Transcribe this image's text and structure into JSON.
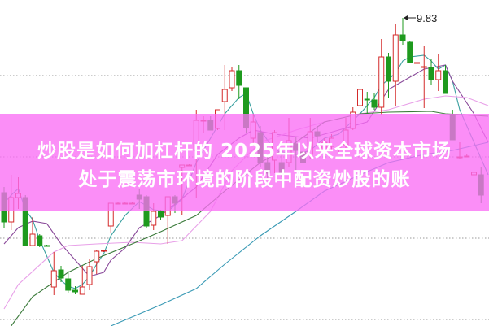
{
  "title": {
    "line1": "炒股是如何加杠杆的 2025年以来全球资本市场",
    "line2": "处于震荡市环境的阶段中配资炒股的账"
  },
  "chart_data": {
    "type": "candlestick",
    "ylim": [
      6.04,
      10.05
    ],
    "grid": true,
    "grid_levels": [
      9.12,
      8.12,
      7.12,
      6.12
    ],
    "colors": {
      "up": "#d42a2a",
      "down": "#1e9a1e",
      "grid": "#9a9a9a",
      "banner": "#fa6ef5"
    },
    "annotation": {
      "text": "9.83",
      "price": 9.83,
      "index": 56
    },
    "candles": [
      [
        7.68,
        7.32,
        7.75,
        7.25
      ],
      [
        7.32,
        7.62,
        7.9,
        7.22
      ],
      [
        7.62,
        7.67,
        7.87,
        7.48
      ],
      [
        7.62,
        7.03,
        7.65,
        7.03
      ],
      [
        7.03,
        7.17,
        7.38,
        7.03
      ],
      [
        7.15,
        7.03,
        7.17,
        7.01
      ],
      [
        7.03,
        7.02,
        7.04,
        7.02
      ],
      [
        6.52,
        6.72,
        6.95,
        6.42
      ],
      [
        6.73,
        6.63,
        6.78,
        6.58
      ],
      [
        6.62,
        6.48,
        6.72,
        6.44
      ],
      [
        6.48,
        6.46,
        6.53,
        6.43
      ],
      [
        6.43,
        6.52,
        6.78,
        6.43
      ],
      [
        6.55,
        6.77,
        6.87,
        6.48
      ],
      [
        6.83,
        6.96,
        6.97,
        6.68
      ],
      [
        6.97,
        6.97,
        6.98,
        6.95
      ],
      [
        7.27,
        7.55,
        7.55,
        7.18
      ],
      [
        7.55,
        7.55,
        7.56,
        7.55
      ],
      [
        7.55,
        7.55,
        7.56,
        7.55
      ],
      [
        7.55,
        7.55,
        7.56,
        7.55
      ],
      [
        7.65,
        7.6,
        7.72,
        7.48
      ],
      [
        7.63,
        7.27,
        7.65,
        7.25
      ],
      [
        7.28,
        7.45,
        7.55,
        7.22
      ],
      [
        7.45,
        7.38,
        7.47,
        7.35
      ],
      [
        7.4,
        7.63,
        7.63,
        7.05
      ],
      [
        7.63,
        7.55,
        7.65,
        7.43
      ],
      [
        7.99,
        8.02,
        8.02,
        7.4
      ],
      [
        8.02,
        8.02,
        8.03,
        8.01
      ],
      [
        8.2,
        8.57,
        8.7,
        7.62
      ],
      [
        8.57,
        8.57,
        8.62,
        8.42
      ],
      [
        8.57,
        8.45,
        8.62,
        8.45
      ],
      [
        8.47,
        8.7,
        8.7,
        8.45
      ],
      [
        8.8,
        8.95,
        9.25,
        8.45
      ],
      [
        8.97,
        9.18,
        9.23,
        8.93
      ],
      [
        9.18,
        9.0,
        9.25,
        8.83
      ],
      [
        8.97,
        8.48,
        8.97,
        8.42
      ],
      [
        8.35,
        8.55,
        8.65,
        8.25
      ],
      [
        8.42,
        8.05,
        8.5,
        8.0
      ],
      [
        8.05,
        7.92,
        8.15,
        7.85
      ],
      [
        8.08,
        8.42,
        8.45,
        7.92
      ],
      [
        8.05,
        7.92,
        8.15,
        7.87
      ],
      [
        8.05,
        8.32,
        8.6,
        8.0
      ],
      [
        8.28,
        8.2,
        8.37,
        7.95
      ],
      [
        8.18,
        8.05,
        8.25,
        8.0
      ],
      [
        8.15,
        8.43,
        8.6,
        8.1
      ],
      [
        8.43,
        8.38,
        8.5,
        8.3
      ],
      [
        8.2,
        8.3,
        8.35,
        8.15
      ],
      [
        8.25,
        8.35,
        8.4,
        8.2
      ],
      [
        8.22,
        8.23,
        8.25,
        8.15
      ],
      [
        8.27,
        8.45,
        8.6,
        8.2
      ],
      [
        8.47,
        8.67,
        8.73,
        8.45
      ],
      [
        8.75,
        8.95,
        8.97,
        8.62
      ],
      [
        8.83,
        8.82,
        8.92,
        8.65
      ],
      [
        8.82,
        8.73,
        8.9,
        8.7
      ],
      [
        8.73,
        9.35,
        9.57,
        8.63
      ],
      [
        9.35,
        9.05,
        9.4,
        8.85
      ],
      [
        9.05,
        9.62,
        9.75,
        8.75
      ],
      [
        9.62,
        9.55,
        9.83,
        9.5
      ],
      [
        9.53,
        9.28,
        9.55,
        9.27
      ],
      [
        9.27,
        9.28,
        9.55,
        9.15
      ],
      [
        9.22,
        9.23,
        9.48,
        8.72
      ],
      [
        9.22,
        9.07,
        9.33,
        9.0
      ],
      [
        9.07,
        9.18,
        9.38,
        8.93
      ],
      [
        9.18,
        8.9,
        9.25,
        8.9
      ],
      [
        8.63,
        8.33,
        8.7,
        8.33
      ],
      [
        8.12,
        8.12,
        8.3,
        8.1
      ],
      [
        8.13,
        8.13,
        8.15,
        8.12
      ],
      [
        7.9,
        7.93,
        8.12,
        7.42
      ],
      [
        7.9,
        7.65,
        8.0,
        7.55
      ]
    ],
    "moving_averages": [
      {
        "color": "#3aa0a0",
        "points": [
          [
            0,
            7.55
          ],
          [
            1,
            7.65
          ],
          [
            2,
            7.73
          ],
          [
            3,
            7.47
          ],
          [
            4,
            7.35
          ],
          [
            5,
            7.1
          ],
          [
            6,
            6.9
          ],
          [
            7,
            6.7
          ],
          [
            8,
            6.6
          ],
          [
            9,
            6.53
          ],
          [
            10,
            6.5
          ],
          [
            11,
            6.55
          ],
          [
            12,
            6.65
          ],
          [
            13,
            6.8
          ],
          [
            14,
            6.93
          ],
          [
            15,
            7.15
          ],
          [
            17,
            7.4
          ],
          [
            19,
            7.57
          ],
          [
            21,
            7.47
          ],
          [
            23,
            7.45
          ],
          [
            25,
            7.6
          ],
          [
            27,
            8.05
          ],
          [
            29,
            8.35
          ],
          [
            31,
            8.65
          ],
          [
            33,
            8.85
          ],
          [
            34,
            8.9
          ],
          [
            35,
            8.65
          ],
          [
            36,
            8.45
          ],
          [
            38,
            8.2
          ],
          [
            41,
            8.15
          ],
          [
            43,
            8.2
          ],
          [
            45,
            8.35
          ],
          [
            47,
            8.4
          ],
          [
            50,
            8.65
          ],
          [
            52,
            8.85
          ],
          [
            53,
            9.0
          ],
          [
            55,
            9.15
          ],
          [
            56,
            9.3
          ],
          [
            57,
            9.35
          ],
          [
            59,
            9.37
          ],
          [
            60,
            9.3
          ],
          [
            61,
            9.2
          ],
          [
            62,
            9.25
          ],
          [
            63,
            9.05
          ],
          [
            64,
            8.7
          ],
          [
            66,
            8.3
          ],
          [
            68,
            7.9
          ]
        ]
      },
      {
        "color": "#8a4a9a",
        "points": [
          [
            0,
            7.05
          ],
          [
            2,
            7.25
          ],
          [
            4,
            7.33
          ],
          [
            6,
            7.3
          ],
          [
            8,
            7.05
          ],
          [
            11,
            6.75
          ],
          [
            12,
            6.65
          ],
          [
            14,
            6.7
          ],
          [
            15,
            6.85
          ],
          [
            17,
            7.0
          ],
          [
            19,
            7.25
          ],
          [
            22,
            7.4
          ],
          [
            27,
            7.75
          ],
          [
            30,
            8.15
          ],
          [
            33,
            8.35
          ],
          [
            35,
            8.45
          ],
          [
            38,
            8.4
          ],
          [
            43,
            8.35
          ],
          [
            47,
            8.45
          ],
          [
            51,
            8.55
          ],
          [
            54,
            8.95
          ],
          [
            57,
            9.1
          ],
          [
            59,
            9.2
          ],
          [
            62,
            9.25
          ],
          [
            63,
            9.05
          ],
          [
            66,
            8.65
          ],
          [
            68,
            8.3
          ]
        ]
      },
      {
        "color": "#e8a0e8",
        "points": [
          [
            0,
            6.25
          ],
          [
            2,
            6.55
          ],
          [
            7,
            6.95
          ],
          [
            9,
            7.03
          ],
          [
            13,
            7.05
          ],
          [
            18,
            7.07
          ],
          [
            22,
            7.05
          ],
          [
            25,
            7.09
          ],
          [
            29,
            7.45
          ],
          [
            32,
            7.95
          ],
          [
            36,
            8.3
          ],
          [
            41,
            8.45
          ],
          [
            45,
            8.55
          ],
          [
            50,
            8.65
          ],
          [
            54,
            8.7
          ],
          [
            59,
            8.83
          ],
          [
            62,
            8.87
          ],
          [
            65,
            8.85
          ],
          [
            68,
            8.75
          ]
        ]
      },
      {
        "color": "#3a7a3a",
        "points": [
          [
            1,
            6.04
          ],
          [
            4,
            6.4
          ],
          [
            9,
            6.7
          ],
          [
            13,
            6.87
          ],
          [
            18,
            7.05
          ],
          [
            22,
            7.2
          ],
          [
            27,
            7.4
          ],
          [
            31,
            7.7
          ],
          [
            36,
            8.05
          ],
          [
            41,
            8.3
          ],
          [
            45,
            8.55
          ],
          [
            50,
            8.65
          ],
          [
            54,
            8.67
          ],
          [
            60,
            8.68
          ],
          [
            62,
            8.65
          ],
          [
            66,
            8.63
          ],
          [
            68,
            8.62
          ]
        ]
      },
      {
        "color": "#3a9ab5",
        "points": [
          [
            15,
            6.04
          ],
          [
            22,
            6.3
          ],
          [
            27,
            6.5
          ],
          [
            31,
            6.8
          ],
          [
            36,
            7.15
          ],
          [
            41,
            7.45
          ],
          [
            45,
            7.7
          ],
          [
            50,
            7.9
          ],
          [
            54,
            8.05
          ],
          [
            59,
            8.15
          ],
          [
            63,
            8.2
          ],
          [
            68,
            8.3
          ]
        ]
      }
    ]
  }
}
